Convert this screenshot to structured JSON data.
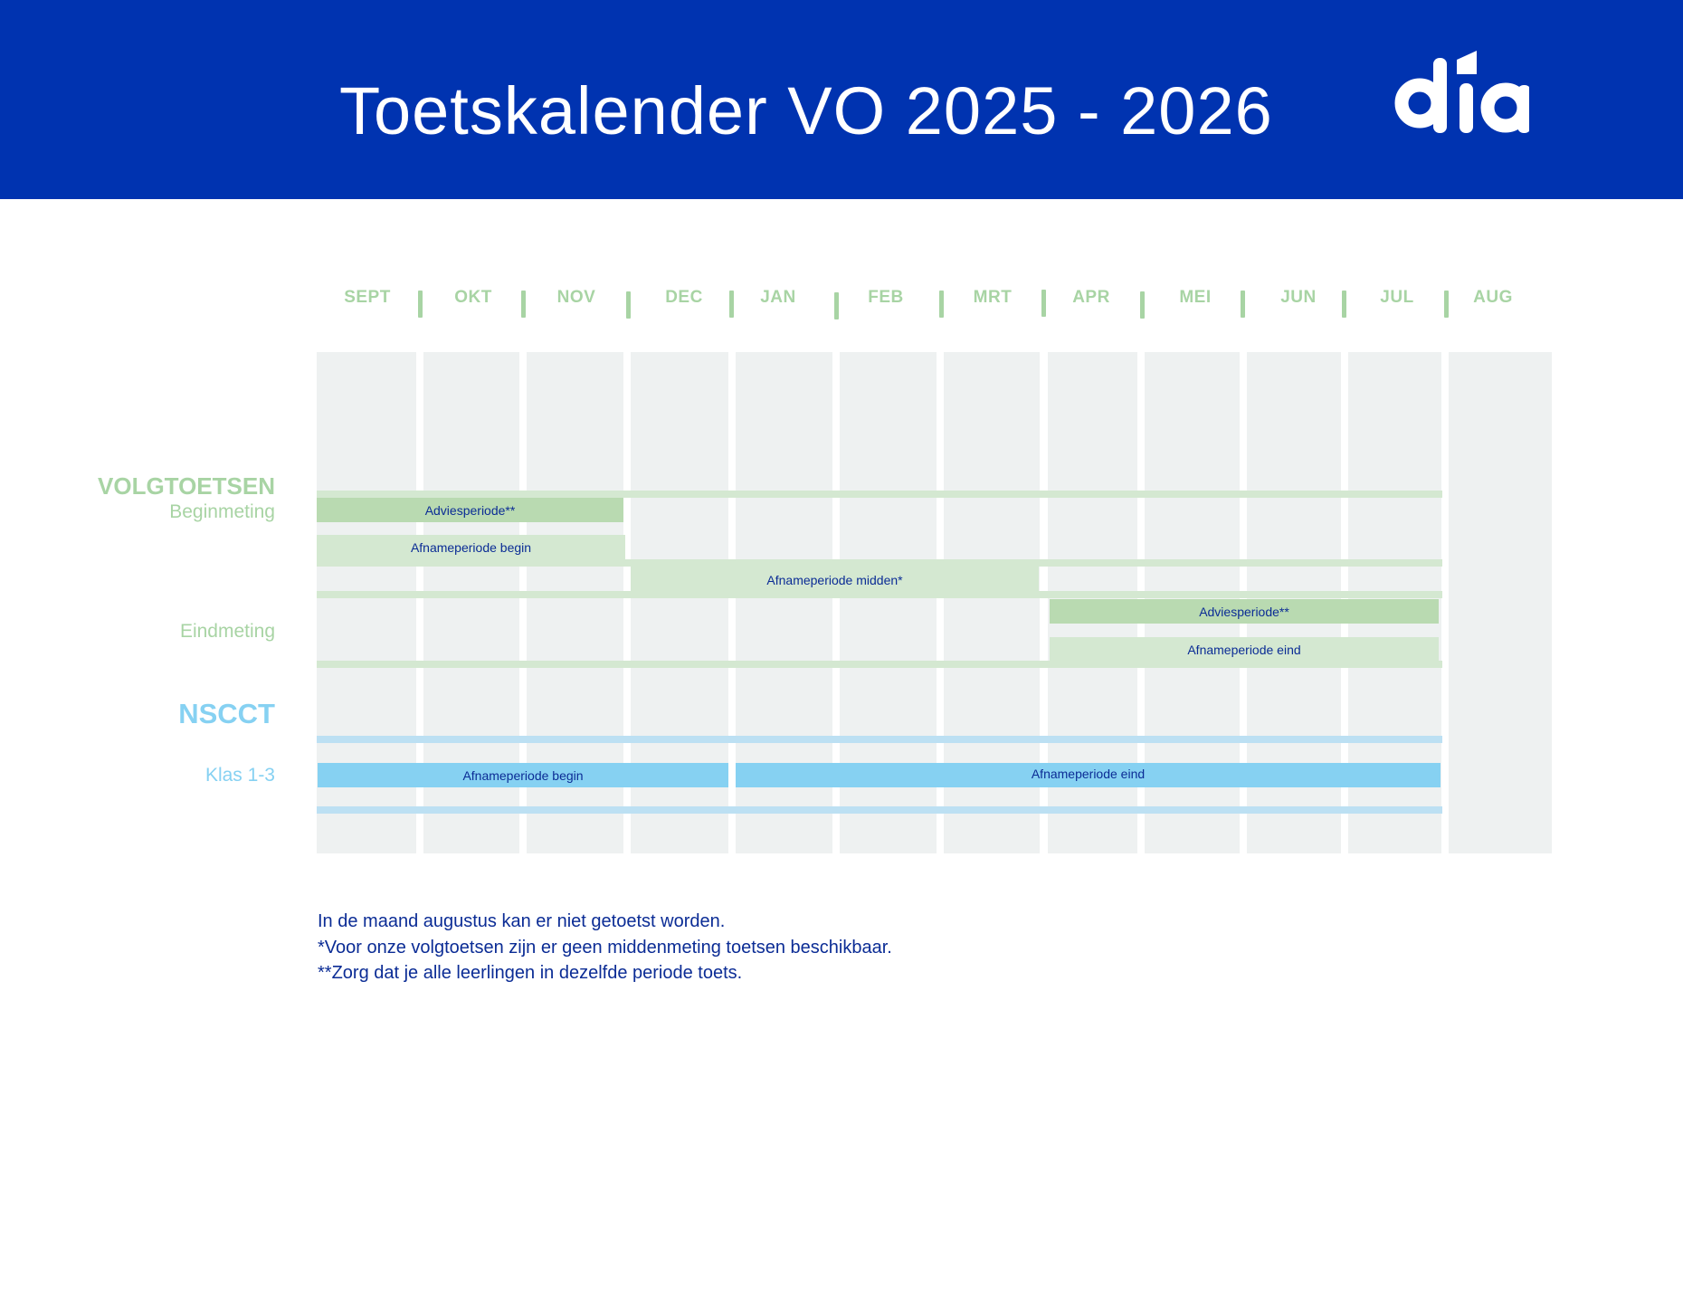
{
  "header": {
    "title": "Toetskalender VO 2025 - 2026",
    "logo_text": "dia",
    "colors": {
      "background": "#0033B0",
      "text": "#FFFFFF"
    }
  },
  "months": [
    "SEPT",
    "OKT",
    "NOV",
    "DEC",
    "JAN",
    "FEB",
    "MRT",
    "APR",
    "MEI",
    "JUN",
    "JUL",
    "AUG"
  ],
  "volgtoetsen": {
    "section_label": "VOLGTOETSEN",
    "begin_label": "Beginmeting",
    "end_label": "Eindmeting",
    "bars": {
      "advies_begin": "Adviesperiode**",
      "afname_begin": "Afnameperiode begin",
      "afname_midden": "Afnameperiode midden*",
      "advies_eind": "Adviesperiode**",
      "afname_eind": "Afnameperiode eind"
    },
    "color": "#A8D4A4"
  },
  "nscct": {
    "section_label": "NSCCT",
    "row_label": "Klas 1-3",
    "bars": {
      "afname_begin": "Afnameperiode begin",
      "afname_eind": "Afnameperiode eind"
    },
    "color": "#86D1F2"
  },
  "notes": [
    "In de maand augustus kan er niet getoetst worden.",
    "*Voor onze volgtoetsen zijn er geen middenmeting toetsen beschikbaar.",
    "**Zorg dat je alle leerlingen in dezelfde periode toets."
  ]
}
